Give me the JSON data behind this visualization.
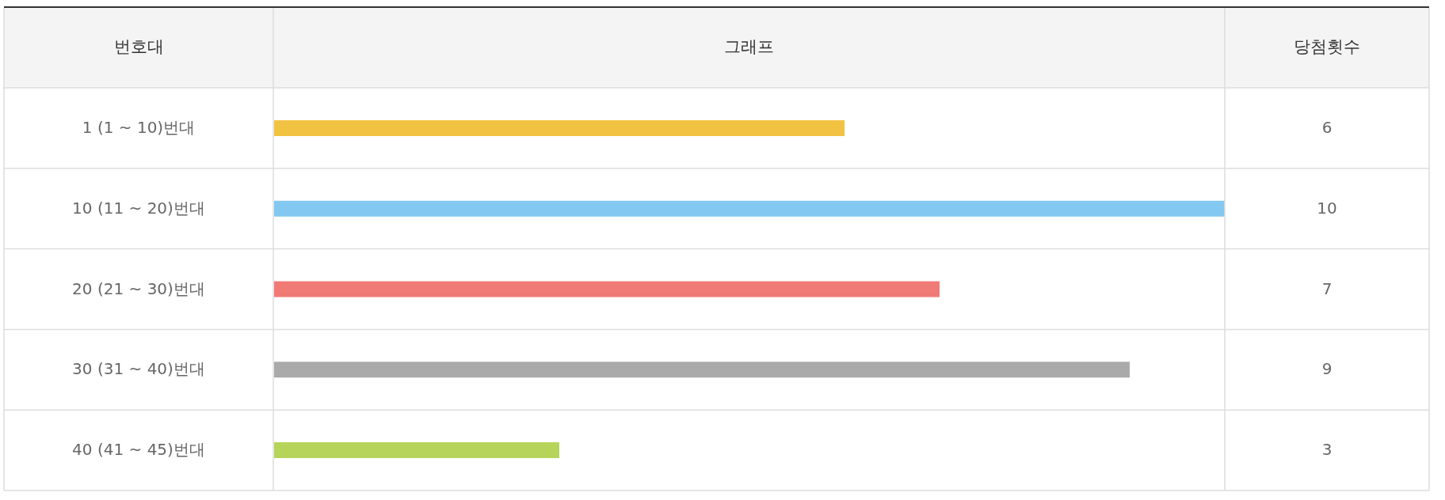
{
  "chart_data": {
    "type": "bar",
    "orientation": "horizontal",
    "ylabel": "번호대",
    "title": "그래프",
    "annotations": [
      "당첨횟수"
    ],
    "categories": [
      "1 (1 ~ 10)번대",
      "10 (11 ~ 20)번대",
      "20 (21 ~ 30)번대",
      "30 (31 ~ 40)번대",
      "40 (41 ~ 45)번대"
    ],
    "values": [
      6,
      10,
      7,
      9,
      3
    ],
    "colors": [
      "#f2c342",
      "#82c8f0",
      "#f07a76",
      "#aaaaaa",
      "#b6d45a"
    ],
    "data_labels": true,
    "grid": "y",
    "tick_labels": "y"
  }
}
